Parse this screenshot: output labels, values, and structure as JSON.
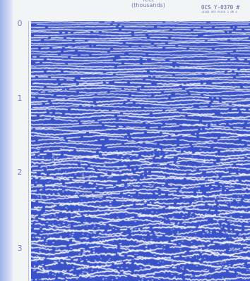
{
  "header": {
    "units_line1": "feet",
    "units_line2": "(thousands)"
  },
  "plate_label": {
    "main": "OCS Y-0370 #",
    "sub": "(ALSO SEE PLATE 2 OR 4"
  },
  "depth_axis": {
    "ticks": [
      "0",
      "1",
      "2",
      "3"
    ]
  },
  "colors": {
    "reflector": "#3a52c8",
    "paper": "#f7f8fb"
  }
}
